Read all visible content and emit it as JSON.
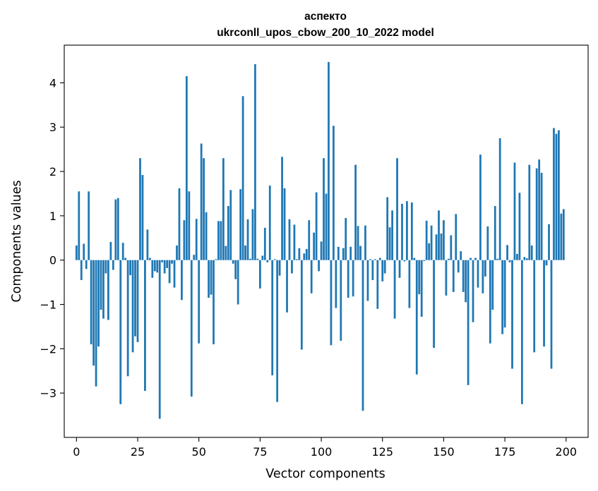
{
  "chart_data": {
    "type": "bar",
    "title": "аспекто",
    "subtitle": "ukrconll_upos_cbow_200_10_2022 model",
    "xlabel": "Vector components",
    "ylabel": "Components values",
    "xlim": [
      -5,
      209
    ],
    "ylim": [
      -4.0,
      4.85
    ],
    "xticks": [
      0,
      25,
      50,
      75,
      100,
      125,
      150,
      175,
      200
    ],
    "yticks": [
      -3,
      -2,
      -1,
      0,
      1,
      2,
      3,
      4
    ],
    "grid": false,
    "legend": "none",
    "bar_color": "#1f77b4",
    "x": [
      0,
      1,
      2,
      3,
      4,
      5,
      6,
      7,
      8,
      9,
      10,
      11,
      12,
      13,
      14,
      15,
      16,
      17,
      18,
      19,
      20,
      21,
      22,
      23,
      24,
      25,
      26,
      27,
      28,
      29,
      30,
      31,
      32,
      33,
      34,
      35,
      36,
      37,
      38,
      39,
      40,
      41,
      42,
      43,
      44,
      45,
      46,
      47,
      48,
      49,
      50,
      51,
      52,
      53,
      54,
      55,
      56,
      57,
      58,
      59,
      60,
      61,
      62,
      63,
      64,
      65,
      66,
      67,
      68,
      69,
      70,
      71,
      72,
      73,
      74,
      75,
      76,
      77,
      78,
      79,
      80,
      81,
      82,
      83,
      84,
      85,
      86,
      87,
      88,
      89,
      90,
      91,
      92,
      93,
      94,
      95,
      96,
      97,
      98,
      99,
      100,
      101,
      102,
      103,
      104,
      105,
      106,
      107,
      108,
      109,
      110,
      111,
      112,
      113,
      114,
      115,
      116,
      117,
      118,
      119,
      120,
      121,
      122,
      123,
      124,
      125,
      126,
      127,
      128,
      129,
      130,
      131,
      132,
      133,
      134,
      135,
      136,
      137,
      138,
      139,
      140,
      141,
      142,
      143,
      144,
      145,
      146,
      147,
      148,
      149,
      150,
      151,
      152,
      153,
      154,
      155,
      156,
      157,
      158,
      159,
      160,
      161,
      162,
      163,
      164,
      165,
      166,
      167,
      168,
      169,
      170,
      171,
      172,
      173,
      174,
      175,
      176,
      177,
      178,
      179,
      180,
      181,
      182,
      183,
      184,
      185,
      186,
      187,
      188,
      189,
      190,
      191,
      192,
      193,
      194,
      195,
      196,
      197,
      198,
      199
    ],
    "values": [
      0.33,
      1.55,
      -0.45,
      0.37,
      -0.2,
      1.55,
      -1.9,
      -2.38,
      -2.85,
      -1.95,
      -1.12,
      -1.32,
      -0.3,
      -1.35,
      0.41,
      -0.22,
      1.37,
      1.4,
      -3.25,
      0.39,
      0.05,
      -2.62,
      -0.34,
      -2.08,
      -1.72,
      -1.85,
      2.3,
      1.92,
      -2.95,
      0.69,
      0.05,
      -0.4,
      -0.25,
      -0.28,
      -3.58,
      -0.05,
      -0.3,
      -0.18,
      -0.52,
      -0.08,
      -0.62,
      0.33,
      1.62,
      -0.9,
      0.9,
      4.15,
      1.55,
      -3.08,
      0.12,
      0.93,
      -1.88,
      2.63,
      2.3,
      1.08,
      -0.85,
      -0.78,
      -1.9,
      0.02,
      0.88,
      0.88,
      2.3,
      0.32,
      1.22,
      1.58,
      -0.08,
      -0.43,
      -1.0,
      1.6,
      3.7,
      0.33,
      0.92,
      0.03,
      1.15,
      4.42,
      0.03,
      -0.64,
      0.1,
      0.73,
      -0.05,
      1.68,
      -2.6,
      0.02,
      -3.2,
      -0.35,
      2.33,
      1.62,
      -1.18,
      0.92,
      -0.3,
      0.8,
      0.02,
      0.27,
      -2.02,
      0.15,
      0.25,
      0.9,
      -0.75,
      0.62,
      1.53,
      -0.25,
      0.42,
      2.3,
      1.5,
      4.47,
      -1.92,
      3.03,
      -1.08,
      0.3,
      -1.82,
      0.27,
      0.95,
      -0.85,
      0.3,
      -0.82,
      2.15,
      0.77,
      0.32,
      -3.4,
      0.78,
      -0.92,
      0.02,
      -0.45,
      0.02,
      -1.1,
      0.05,
      -0.48,
      -0.3,
      1.42,
      0.74,
      1.12,
      -1.32,
      2.3,
      -0.4,
      1.27,
      -0.03,
      1.33,
      -1.08,
      1.3,
      0.05,
      -2.58,
      -0.77,
      -1.28,
      -0.02,
      0.89,
      0.38,
      0.78,
      -1.98,
      0.58,
      1.12,
      0.6,
      0.9,
      -0.8,
      0.03,
      0.56,
      -0.72,
      1.04,
      -0.28,
      0.2,
      -0.72,
      -0.95,
      -2.82,
      0.05,
      -1.4,
      0.05,
      -0.62,
      2.38,
      -0.75,
      -0.37,
      0.76,
      -1.88,
      -1.12,
      1.22,
      0.03,
      2.75,
      -1.67,
      -1.52,
      0.34,
      -0.05,
      -2.45,
      2.2,
      0.14,
      1.52,
      -3.25,
      0.07,
      0.04,
      2.15,
      0.33,
      -2.08,
      2.07,
      2.27,
      1.97,
      -1.95,
      -0.12,
      0.81,
      -2.45,
      2.98,
      2.85,
      2.93,
      1.05,
      1.15
    ]
  }
}
